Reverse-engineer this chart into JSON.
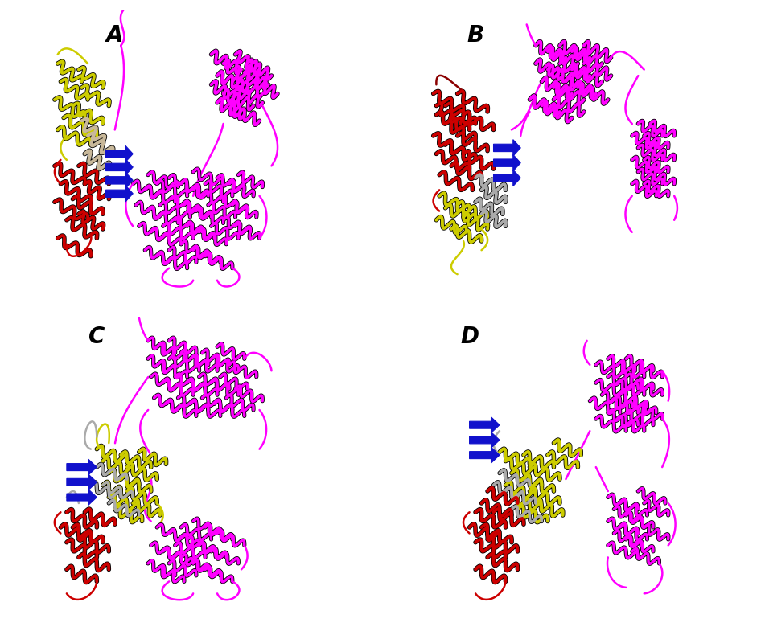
{
  "panels": [
    "A",
    "B",
    "C",
    "D"
  ],
  "label_fontsize": 20,
  "label_fontweight": "bold",
  "background_color": "#ffffff",
  "figsize": [
    9.51,
    7.8
  ],
  "dpi": 100,
  "mg": "#FF00FF",
  "red": "#CC0000",
  "darkred": "#8B0000",
  "yellow": "#CCCC00",
  "blue": "#1111CC",
  "beige": "#C8B89A",
  "gray": "#AAAAAA",
  "lw_helix": 2.8,
  "lw_loop": 1.8
}
